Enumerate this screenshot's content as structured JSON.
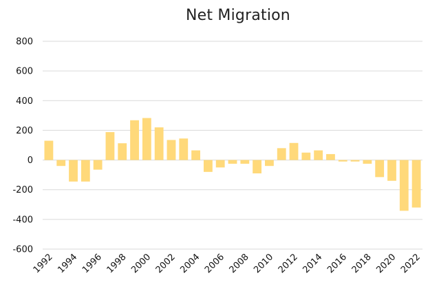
{
  "chart_data": {
    "type": "bar",
    "title": "Net Migration",
    "xlabel": "",
    "ylabel": "",
    "ylim": [
      -600,
      800
    ],
    "yticks": [
      -600,
      -400,
      -200,
      0,
      200,
      400,
      600,
      800
    ],
    "grid": true,
    "legend": "none",
    "colors": {
      "bar": "#FFD97A",
      "grid": "#D9D9D9",
      "text": "#111111"
    },
    "categories": [
      "1992",
      "1993",
      "1994",
      "1995",
      "1996",
      "1997",
      "1998",
      "1999",
      "2000",
      "2001",
      "2002",
      "2003",
      "2004",
      "2005",
      "2006",
      "2007",
      "2008",
      "2009",
      "2010",
      "2011",
      "2012",
      "2013",
      "2014",
      "2015",
      "2016",
      "2017",
      "2018",
      "2019",
      "2020",
      "2021",
      "2022"
    ],
    "category_labels": [
      "1992",
      "",
      "1994",
      "",
      "1996",
      "",
      "1998",
      "",
      "2000",
      "",
      "2002",
      "",
      "2004",
      "",
      "2006",
      "",
      "2008",
      "",
      "2010",
      "",
      "2012",
      "",
      "2014",
      "",
      "2016",
      "",
      "2018",
      "",
      "2020",
      "",
      "2022"
    ],
    "values": [
      130,
      -40,
      -145,
      -145,
      -65,
      188,
      113,
      268,
      283,
      220,
      135,
      145,
      65,
      -80,
      -50,
      -25,
      -25,
      -90,
      -40,
      80,
      115,
      50,
      65,
      40,
      -10,
      -10,
      -25,
      -115,
      -140,
      -342,
      -320
    ]
  }
}
